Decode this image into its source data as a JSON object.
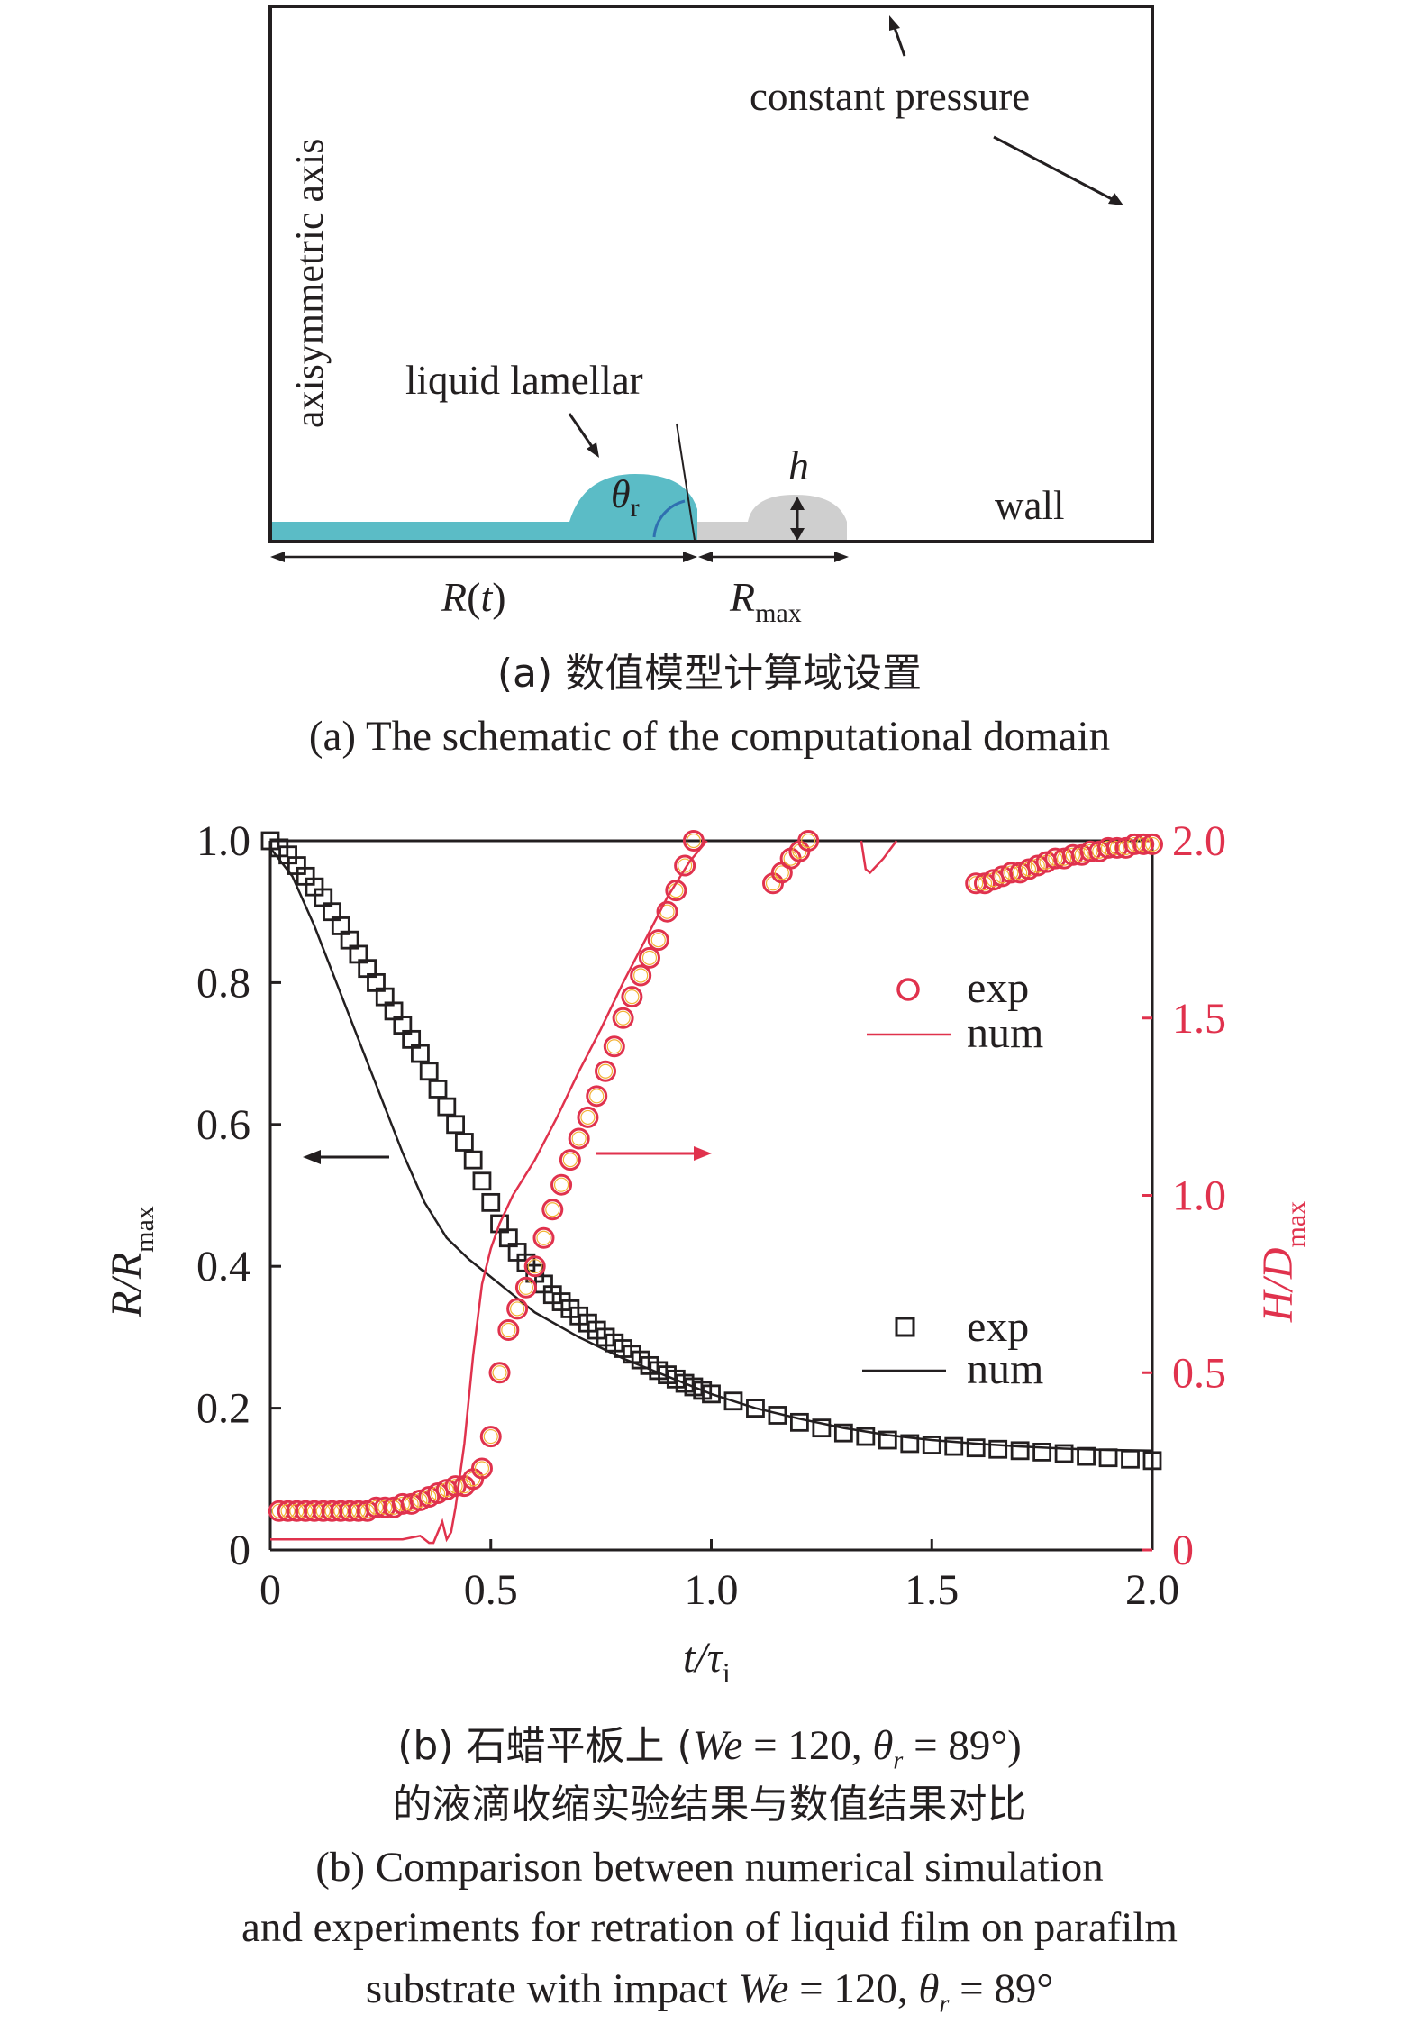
{
  "schematic": {
    "label_axis": "axisymmetric axis",
    "label_pressure": "constant pressure",
    "label_lamellar": "liquid lamellar",
    "label_wall": "wall",
    "label_theta": "θ",
    "label_theta_sub": "r",
    "label_h": "h",
    "label_R": "R",
    "label_R_arg": "t",
    "label_Rmax": "R",
    "label_Rmax_sub": "max",
    "colors": {
      "liquid": "#5bbcc6",
      "ghost_drop": "#cfcfcf",
      "frame": "#231f20"
    }
  },
  "caption_a": {
    "zh": "(a) 数值模型计算域设置",
    "en": "(a) The schematic of the computational domain"
  },
  "caption_b": {
    "zh_1_a": "(b) 石蜡平板上 (",
    "zh_1_we": "We",
    "zh_1_b": " = 120, ",
    "zh_1_theta": "θ",
    "zh_1_sub": "r",
    "zh_1_c": " = 89°)",
    "zh_2": "的液滴收缩实验结果与数值结果对比",
    "en_1": "(b) Comparison between numerical simulation",
    "en_2": "and experiments for retration of liquid film on parafilm",
    "en_3_a": "substrate with impact ",
    "en_3_we": "We",
    "en_3_b": " = 120, ",
    "en_3_theta": "θ",
    "en_3_sub": "r",
    "en_3_c": " = 89°"
  },
  "chart_data": {
    "type": "scatter",
    "xlabel": "t/τ",
    "xlabel_main": "t/τ",
    "xlabel_sub": "i",
    "ylabel_left_main": "R/R",
    "ylabel_left_sub": "max",
    "ylabel_right_main": "H/D",
    "ylabel_right_sub": "max",
    "xlim": [
      0,
      2.0
    ],
    "ylim_left": [
      0,
      1.0
    ],
    "ylim_right": [
      0,
      2.0
    ],
    "x_ticks": [
      "0",
      "0.5",
      "1.0",
      "1.5",
      "2.0"
    ],
    "x_tick_values": [
      0,
      0.5,
      1.0,
      1.5,
      2.0
    ],
    "y_left_ticks": [
      "0",
      "0.2",
      "0.4",
      "0.6",
      "0.8",
      "1.0"
    ],
    "y_left_tick_values": [
      0,
      0.2,
      0.4,
      0.6,
      0.8,
      1.0
    ],
    "y_right_ticks": [
      "0",
      "0.5",
      "1.0",
      "1.5",
      "2.0"
    ],
    "y_right_tick_values": [
      0,
      0.5,
      1.0,
      1.5,
      2.0
    ],
    "legend_right": {
      "exp": "exp",
      "num": "num"
    },
    "legend_left": {
      "exp": "exp",
      "num": "num"
    },
    "series": [
      {
        "axis": "left",
        "kind": "exp",
        "marker": "square",
        "color": "#231f20",
        "x": [
          0.0,
          0.02,
          0.04,
          0.06,
          0.08,
          0.1,
          0.12,
          0.14,
          0.16,
          0.18,
          0.2,
          0.22,
          0.24,
          0.26,
          0.28,
          0.3,
          0.32,
          0.34,
          0.36,
          0.38,
          0.4,
          0.42,
          0.44,
          0.46,
          0.48,
          0.5,
          0.52,
          0.54,
          0.56,
          0.58,
          0.6,
          0.62,
          0.64,
          0.66,
          0.68,
          0.7,
          0.72,
          0.74,
          0.76,
          0.78,
          0.8,
          0.82,
          0.84,
          0.86,
          0.88,
          0.9,
          0.92,
          0.94,
          0.96,
          0.98,
          1.0,
          1.05,
          1.1,
          1.15,
          1.2,
          1.25,
          1.3,
          1.35,
          1.4,
          1.45,
          1.5,
          1.55,
          1.6,
          1.65,
          1.7,
          1.75,
          1.8,
          1.85,
          1.9,
          1.95,
          2.0
        ],
        "values": [
          1.0,
          0.99,
          0.98,
          0.965,
          0.95,
          0.935,
          0.92,
          0.9,
          0.88,
          0.86,
          0.84,
          0.82,
          0.8,
          0.78,
          0.76,
          0.74,
          0.72,
          0.7,
          0.675,
          0.65,
          0.625,
          0.6,
          0.575,
          0.55,
          0.52,
          0.49,
          0.46,
          0.44,
          0.42,
          0.405,
          0.39,
          0.375,
          0.36,
          0.35,
          0.34,
          0.33,
          0.32,
          0.31,
          0.3,
          0.292,
          0.284,
          0.276,
          0.268,
          0.26,
          0.253,
          0.247,
          0.241,
          0.235,
          0.23,
          0.225,
          0.22,
          0.21,
          0.2,
          0.19,
          0.18,
          0.172,
          0.165,
          0.16,
          0.155,
          0.15,
          0.148,
          0.146,
          0.144,
          0.142,
          0.14,
          0.138,
          0.136,
          0.132,
          0.13,
          0.128,
          0.126
        ]
      },
      {
        "axis": "left",
        "kind": "num",
        "style": "line",
        "color": "#231f20",
        "x": [
          0.0,
          0.05,
          0.1,
          0.15,
          0.2,
          0.25,
          0.3,
          0.35,
          0.4,
          0.45,
          0.5,
          0.55,
          0.6,
          0.7,
          0.8,
          0.9,
          1.0,
          1.1,
          1.2,
          1.3,
          1.4,
          1.5,
          1.6,
          1.7,
          1.8,
          1.9,
          2.0
        ],
        "values": [
          0.99,
          0.95,
          0.88,
          0.8,
          0.72,
          0.64,
          0.56,
          0.49,
          0.44,
          0.41,
          0.385,
          0.36,
          0.335,
          0.3,
          0.27,
          0.245,
          0.22,
          0.2,
          0.185,
          0.172,
          0.162,
          0.155,
          0.15,
          0.146,
          0.143,
          0.141,
          0.14
        ]
      },
      {
        "axis": "right",
        "kind": "exp",
        "marker": "circle",
        "color": "#e0324d",
        "x": [
          0.02,
          0.04,
          0.06,
          0.08,
          0.1,
          0.12,
          0.14,
          0.16,
          0.18,
          0.2,
          0.22,
          0.24,
          0.26,
          0.28,
          0.3,
          0.32,
          0.34,
          0.36,
          0.38,
          0.4,
          0.42,
          0.44,
          0.46,
          0.48,
          0.5,
          0.52,
          0.54,
          0.56,
          0.58,
          0.6,
          0.62,
          0.64,
          0.66,
          0.68,
          0.7,
          0.72,
          0.74,
          0.76,
          0.78,
          0.8,
          0.82,
          0.84,
          0.86,
          0.88,
          0.9,
          0.92,
          0.94,
          0.96,
          1.14,
          1.16,
          1.18,
          1.2,
          1.22,
          1.6,
          1.62,
          1.64,
          1.66,
          1.68,
          1.7,
          1.72,
          1.74,
          1.76,
          1.78,
          1.8,
          1.82,
          1.84,
          1.86,
          1.88,
          1.9,
          1.92,
          1.94,
          1.96,
          1.98,
          2.0
        ],
        "values": [
          0.11,
          0.11,
          0.11,
          0.11,
          0.11,
          0.11,
          0.11,
          0.11,
          0.11,
          0.11,
          0.11,
          0.12,
          0.12,
          0.12,
          0.13,
          0.13,
          0.14,
          0.15,
          0.16,
          0.17,
          0.18,
          0.18,
          0.2,
          0.23,
          0.32,
          0.5,
          0.62,
          0.68,
          0.74,
          0.8,
          0.88,
          0.96,
          1.03,
          1.1,
          1.16,
          1.22,
          1.28,
          1.35,
          1.42,
          1.5,
          1.56,
          1.62,
          1.67,
          1.72,
          1.8,
          1.86,
          1.93,
          2.0,
          1.88,
          1.91,
          1.95,
          1.97,
          2.0,
          1.88,
          1.88,
          1.89,
          1.9,
          1.91,
          1.91,
          1.92,
          1.93,
          1.94,
          1.95,
          1.95,
          1.96,
          1.96,
          1.97,
          1.97,
          1.98,
          1.98,
          1.98,
          1.99,
          1.99,
          1.99
        ]
      },
      {
        "axis": "right",
        "kind": "num",
        "style": "line",
        "color": "#e0324d",
        "x": [
          0.0,
          0.1,
          0.2,
          0.3,
          0.34,
          0.36,
          0.37,
          0.39,
          0.4,
          0.41,
          0.42,
          0.44,
          0.46,
          0.48,
          0.5,
          0.52,
          0.55,
          0.6,
          0.65,
          0.7,
          0.75,
          0.8,
          0.85,
          0.9,
          0.95,
          0.99
        ],
        "values": [
          0.03,
          0.03,
          0.03,
          0.03,
          0.04,
          0.02,
          0.02,
          0.08,
          0.03,
          0.05,
          0.12,
          0.3,
          0.55,
          0.75,
          0.85,
          0.92,
          1.0,
          1.1,
          1.22,
          1.35,
          1.47,
          1.6,
          1.72,
          1.84,
          1.94,
          2.0
        ]
      },
      {
        "axis": "right",
        "kind": "num",
        "style": "line",
        "color": "#e0324d",
        "x": [
          1.34,
          1.35,
          1.36,
          1.39,
          1.42
        ],
        "values": [
          2.0,
          1.92,
          1.91,
          1.95,
          2.0
        ]
      }
    ]
  }
}
